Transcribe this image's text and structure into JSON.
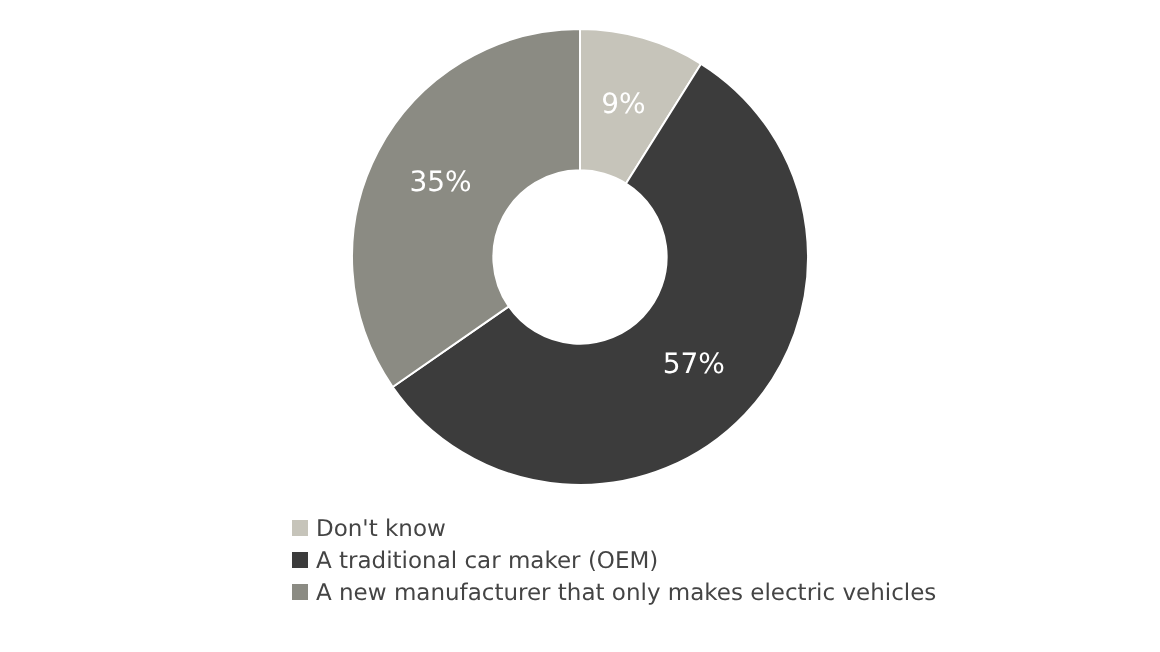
{
  "chart_data": {
    "type": "donut",
    "categories": [
      "Don't know",
      "A traditional car maker (OEM)",
      "A new manufacturer that only makes electric vehicles"
    ],
    "values": [
      9,
      57,
      35
    ],
    "colors": [
      "#c6c4ba",
      "#3c3c3c",
      "#8b8b83"
    ],
    "value_labels": [
      "9%",
      "57%",
      "35%"
    ],
    "legend": "bottom"
  }
}
